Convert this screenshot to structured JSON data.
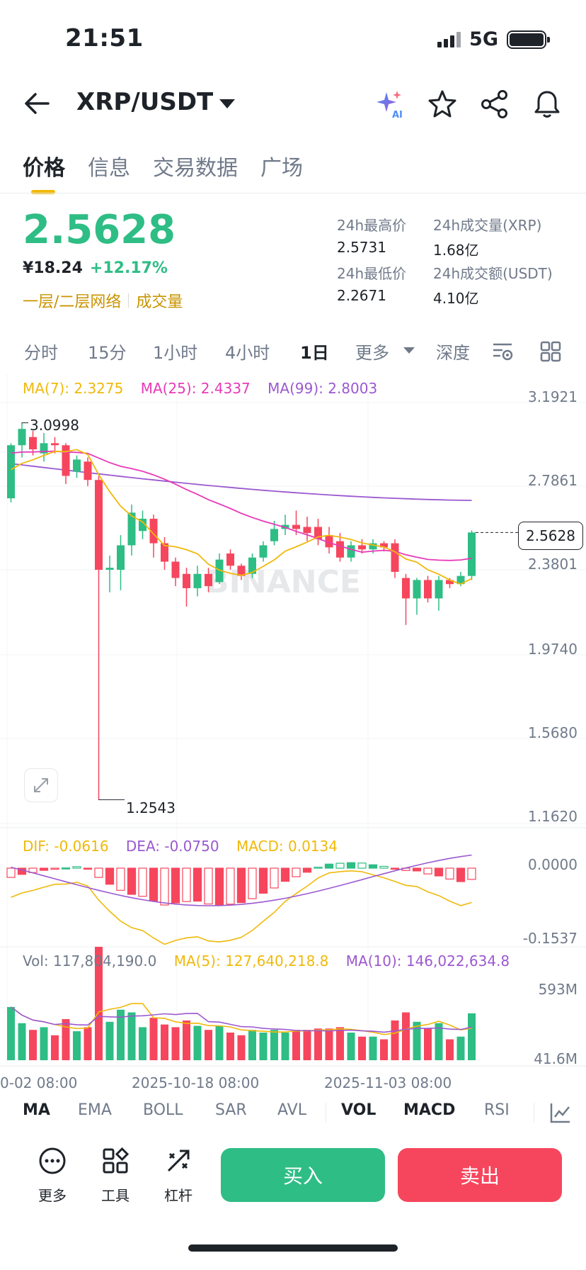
{
  "status": {
    "time": "21:51",
    "network": "5G"
  },
  "header": {
    "pair": "XRP/USDT"
  },
  "tabs": [
    "价格",
    "信息",
    "交易数据",
    "广场"
  ],
  "price": {
    "last": "2.5628",
    "cny": "¥18.24",
    "change": "+12.17%",
    "tag1": "一层/二层网络",
    "tag2": "成交量"
  },
  "stats": {
    "high_label": "24h最高价",
    "high": "2.5731",
    "low_label": "24h最低价",
    "low": "2.2671",
    "vol_label": "24h成交量(XRP)",
    "vol": "1.68亿",
    "amt_label": "24h成交额(USDT)",
    "amt": "4.10亿"
  },
  "intervals": [
    "分时",
    "15分",
    "1小时",
    "4小时",
    "1日",
    "更多",
    "深度"
  ],
  "ma_legend": {
    "ma7": "MA(7): 2.3275",
    "ma25": "MA(25): 2.4337",
    "ma99": "MA(99): 2.8003"
  },
  "price_axis": [
    "3.1921",
    "2.7861",
    "2.3801",
    "1.9740",
    "1.5680",
    "1.1620"
  ],
  "current_price_tag": "2.5628",
  "high_marker": "3.0998",
  "low_marker": "1.2543",
  "watermark": "BINANCE",
  "macd_legend": {
    "dif": "DIF: -0.0616",
    "dea": "DEA: -0.0750",
    "macd": "MACD: 0.0134"
  },
  "macd_axis": [
    "0.0000",
    "-0.1537"
  ],
  "vol_legend": {
    "vol": "Vol: 117,804,190.0",
    "ma5": "MA(5): 127,640,218.8",
    "ma10": "MA(10): 146,022,634.8"
  },
  "vol_axis": [
    "593M",
    "41.6M"
  ],
  "dates": [
    "0-02 08:00",
    "2025-10-18 08:00",
    "2025-11-03 08:00"
  ],
  "indicator_tabs": [
    "MA",
    "EMA",
    "BOLL",
    "SAR",
    "AVL",
    "VOL",
    "MACD",
    "RSI"
  ],
  "actions": {
    "more": "更多",
    "tools": "工具",
    "leverage": "杠杆",
    "buy": "买入",
    "sell": "卖出"
  },
  "colors": {
    "up": "#2ebd85",
    "down": "#f6465d",
    "ma7": "#f0b90b",
    "ma25": "#e73ab8",
    "ma99": "#9b59d0",
    "accent": "#f0b90b"
  },
  "chart_data": {
    "type": "candlestick",
    "ylim": [
      1.162,
      3.1921
    ],
    "candles": [
      [
        2.73,
        2.99,
        2.71,
        3.0
      ],
      [
        2.99,
        3.07,
        2.93,
        3.0998
      ],
      [
        3.03,
        2.97,
        2.94,
        3.06
      ],
      [
        2.95,
        3.0,
        2.91,
        3.05
      ],
      [
        3.0,
        2.99,
        2.95,
        3.03
      ],
      [
        2.99,
        2.84,
        2.8,
        3.0
      ],
      [
        2.86,
        2.92,
        2.83,
        2.94
      ],
      [
        2.91,
        2.82,
        2.79,
        2.93
      ],
      [
        2.82,
        2.38,
        1.2543,
        2.84
      ],
      [
        2.38,
        2.39,
        2.27,
        2.45
      ],
      [
        2.38,
        2.5,
        2.28,
        2.55
      ],
      [
        2.5,
        2.66,
        2.45,
        2.7
      ],
      [
        2.57,
        2.63,
        2.53,
        2.67
      ],
      [
        2.63,
        2.51,
        2.44,
        2.65
      ],
      [
        2.51,
        2.42,
        2.38,
        2.54
      ],
      [
        2.42,
        2.34,
        2.3,
        2.44
      ],
      [
        2.36,
        2.29,
        2.2,
        2.39
      ],
      [
        2.29,
        2.36,
        2.25,
        2.4
      ],
      [
        2.36,
        2.3,
        2.27,
        2.39
      ],
      [
        2.32,
        2.43,
        2.31,
        2.46
      ],
      [
        2.46,
        2.4,
        2.38,
        2.48
      ],
      [
        2.4,
        2.35,
        2.33,
        2.41
      ],
      [
        2.36,
        2.44,
        2.34,
        2.46
      ],
      [
        2.44,
        2.5,
        2.42,
        2.52
      ],
      [
        2.52,
        2.58,
        2.5,
        2.62
      ],
      [
        2.58,
        2.6,
        2.55,
        2.65
      ],
      [
        2.6,
        2.58,
        2.55,
        2.67
      ],
      [
        2.59,
        2.56,
        2.52,
        2.64
      ],
      [
        2.59,
        2.53,
        2.5,
        2.63
      ],
      [
        2.55,
        2.49,
        2.46,
        2.59
      ],
      [
        2.52,
        2.44,
        2.42,
        2.56
      ],
      [
        2.44,
        2.5,
        2.42,
        2.52
      ],
      [
        2.5,
        2.48,
        2.46,
        2.53
      ],
      [
        2.48,
        2.51,
        2.46,
        2.53
      ],
      [
        2.51,
        2.49,
        2.47,
        2.52
      ],
      [
        2.51,
        2.37,
        2.34,
        2.53
      ],
      [
        2.34,
        2.24,
        2.11,
        2.36
      ],
      [
        2.24,
        2.33,
        2.16,
        2.34
      ],
      [
        2.33,
        2.24,
        2.22,
        2.35
      ],
      [
        2.24,
        2.33,
        2.18,
        2.35
      ],
      [
        2.33,
        2.31,
        2.29,
        2.34
      ],
      [
        2.31,
        2.35,
        2.3,
        2.37
      ],
      [
        2.35,
        2.5628,
        2.33,
        2.5731
      ]
    ]
  }
}
